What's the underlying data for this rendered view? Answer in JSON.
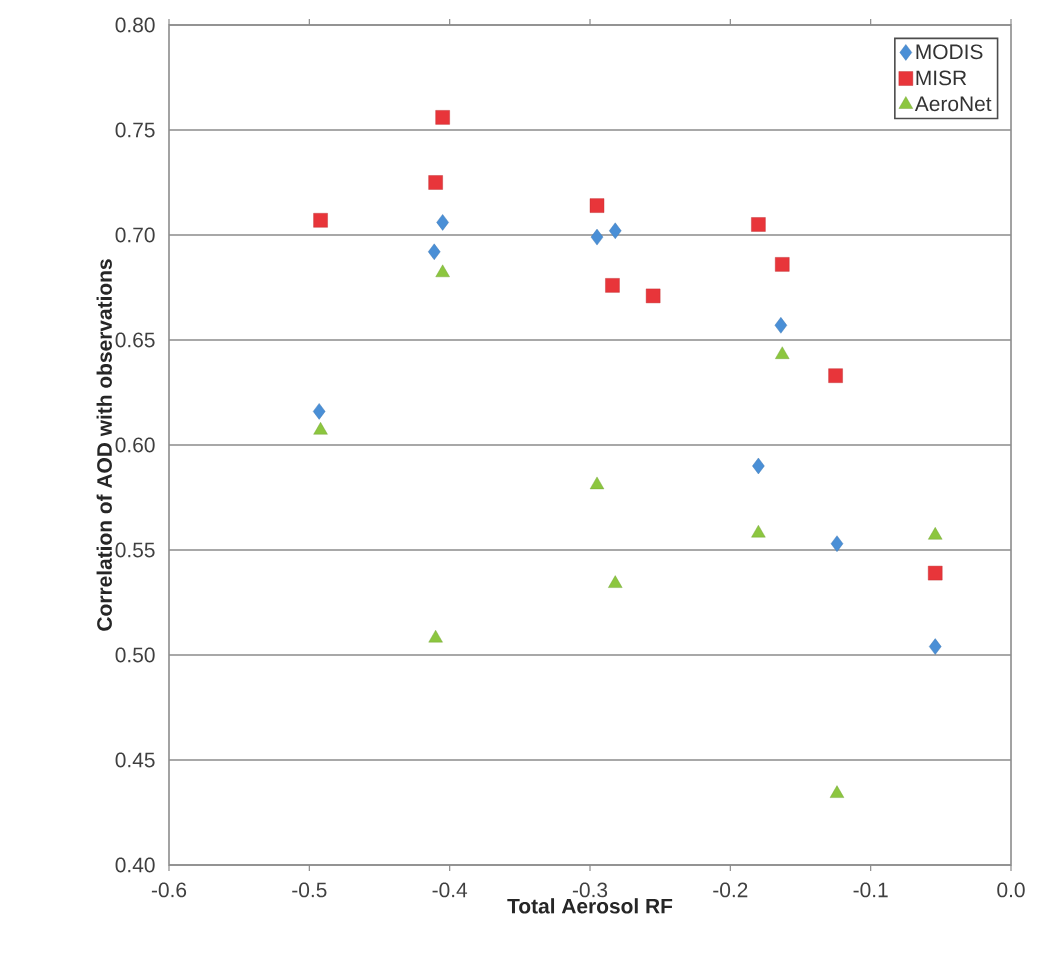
{
  "chart_data": {
    "type": "scatter",
    "xlabel": "Total Aerosol RF",
    "ylabel": "Correlation of AOD with observations",
    "xlim": [
      -0.6,
      0.0
    ],
    "ylim": [
      0.4,
      0.8
    ],
    "xticks": [
      {
        "value": -0.6,
        "label": "-0.6"
      },
      {
        "value": -0.5,
        "label": "-0.5"
      },
      {
        "value": -0.4,
        "label": "-0.4"
      },
      {
        "value": -0.3,
        "label": "-0.3"
      },
      {
        "value": -0.2,
        "label": "-0.2"
      },
      {
        "value": -0.1,
        "label": "-0.1"
      },
      {
        "value": 0.0,
        "label": "0.0"
      }
    ],
    "yticks": [
      {
        "value": 0.4,
        "label": "0.40"
      },
      {
        "value": 0.45,
        "label": "0.45"
      },
      {
        "value": 0.5,
        "label": "0.50"
      },
      {
        "value": 0.55,
        "label": "0.55"
      },
      {
        "value": 0.6,
        "label": "0.60"
      },
      {
        "value": 0.65,
        "label": "0.65"
      },
      {
        "value": 0.7,
        "label": "0.70"
      },
      {
        "value": 0.75,
        "label": "0.75"
      },
      {
        "value": 0.8,
        "label": "0.80"
      }
    ],
    "grid": "y",
    "legend": "top right",
    "series": [
      {
        "name": "MODIS",
        "color": "#4a8fd6",
        "marker": "diamond",
        "x": [
          -0.493,
          -0.411,
          -0.405,
          -0.295,
          -0.282,
          -0.164,
          -0.18,
          -0.124,
          -0.054
        ],
        "values": [
          0.616,
          0.692,
          0.706,
          0.699,
          0.702,
          0.657,
          0.59,
          0.553,
          0.504
        ]
      },
      {
        "name": "MISR",
        "color": "#e8353a",
        "marker": "square",
        "x": [
          -0.492,
          -0.405,
          -0.41,
          -0.295,
          -0.284,
          -0.255,
          -0.18,
          -0.163,
          -0.125,
          -0.054
        ],
        "values": [
          0.707,
          0.756,
          0.725,
          0.714,
          0.676,
          0.671,
          0.705,
          0.686,
          0.633,
          0.539
        ]
      },
      {
        "name": "AeroNet",
        "color": "#8cc63f",
        "marker": "triangle",
        "x": [
          -0.492,
          -0.405,
          -0.41,
          -0.295,
          -0.282,
          -0.163,
          -0.18,
          -0.124,
          -0.054
        ],
        "values": [
          0.607,
          0.682,
          0.508,
          0.581,
          0.534,
          0.643,
          0.558,
          0.434,
          0.557
        ]
      }
    ]
  }
}
